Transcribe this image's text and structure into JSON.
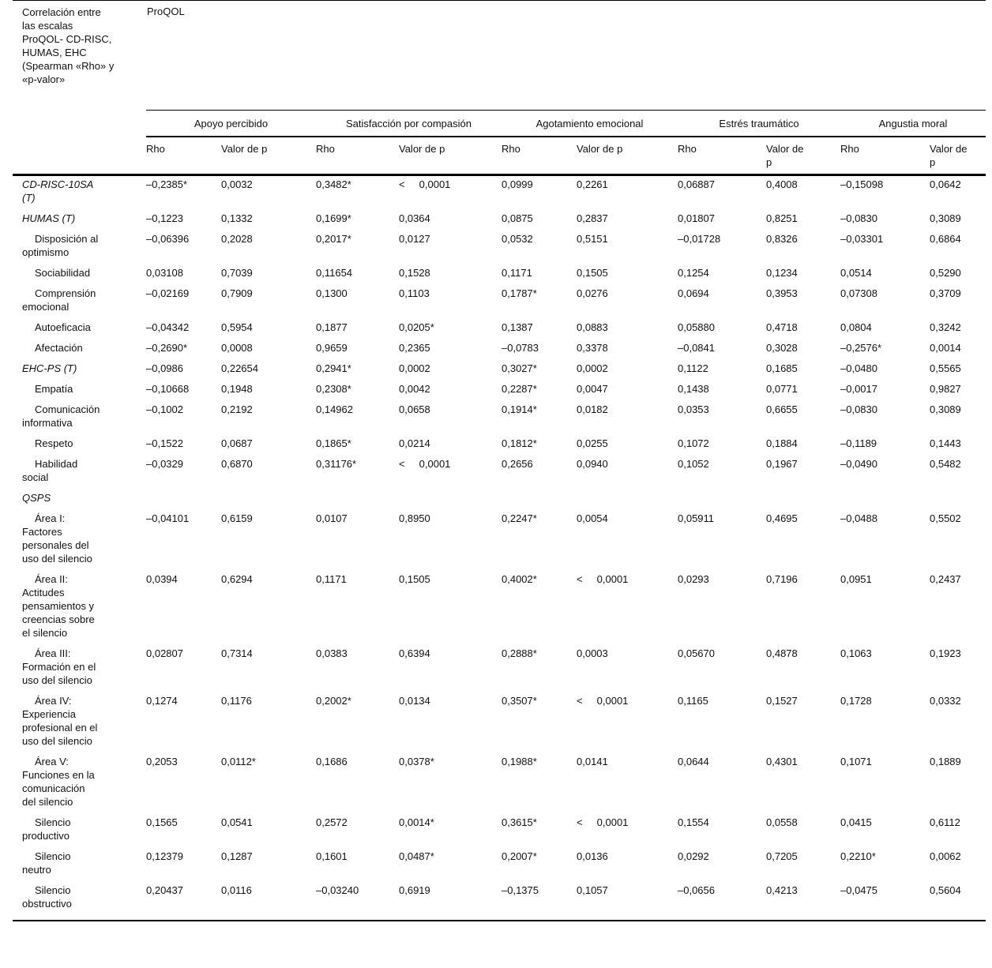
{
  "table": {
    "title": "Correlación entre\nlas escalas\nProQOL- CD-RISC,\nHUMAS, EHC\n(Spearman «Rho» y\n«p-valor»",
    "top_header": "ProQOL",
    "groups": [
      {
        "label": "Apoyo percibido"
      },
      {
        "label": "Satisfacción por compasión"
      },
      {
        "label": "Agotamiento emocional"
      },
      {
        "label": "Estrés traumático"
      },
      {
        "label": "Angustia moral"
      }
    ],
    "subheaders": [
      "Rho",
      "Valor de p",
      "Rho",
      "Valor de p",
      "Rho",
      "Valor de p",
      "Rho",
      "Valor de\np",
      "Rho",
      "Valor de\np"
    ],
    "rows": [
      {
        "label": "CD-RISC-10SA\n(T)",
        "style": "scale",
        "values": [
          "–0,2385*",
          "0,0032",
          "0,3482*",
          "<     0,0001",
          "0,0999",
          "0,2261",
          "0,06887",
          "0,4008",
          "–0,15098",
          "0,0642"
        ]
      },
      {
        "label": "HUMAS (T)",
        "style": "scale",
        "values": [
          "–0,1223",
          "0,1332",
          "0,1699*",
          "0,0364",
          "0,0875",
          "0,2837",
          "0,01807",
          "0,8251",
          "–0,0830",
          "0,3089"
        ]
      },
      {
        "label": "Disposición al\noptimismo",
        "style": "sub",
        "values": [
          "–0,06396",
          "0,2028",
          "0,2017*",
          "0,0127",
          "0,0532",
          "0,5151",
          "–0,01728",
          "0,8326",
          "–0,03301",
          "0,6864"
        ]
      },
      {
        "label": "Sociabilidad",
        "style": "sub",
        "values": [
          "0,03108",
          "0,7039",
          "0,11654",
          "0,1528",
          "0,1171",
          "0,1505",
          "0,1254",
          "0,1234",
          "0,0514",
          "0,5290"
        ]
      },
      {
        "label": "Comprensión\nemocional",
        "style": "sub",
        "values": [
          "–0,02169",
          "0,7909",
          "0,1300",
          "0,1103",
          "0,1787*",
          "0,0276",
          "0,0694",
          "0,3953",
          "0,07308",
          "0,3709"
        ]
      },
      {
        "label": "Autoeficacia",
        "style": "sub",
        "values": [
          "–0,04342",
          "0,5954",
          "0,1877",
          "0,0205*",
          "0,1387",
          "0,0883",
          "0,05880",
          "0,4718",
          "0,0804",
          "0,3242"
        ]
      },
      {
        "label": "Afectación",
        "style": "sub",
        "values": [
          "–0,2690*",
          "0,0008",
          "0,9659",
          "0,2365",
          "–0,0783",
          "0,3378",
          "–0,0841",
          "0,3028",
          "–0,2576*",
          "0,0014"
        ]
      },
      {
        "label": "EHC-PS (T)",
        "style": "scale",
        "values": [
          "–0,0986",
          "0,22654",
          "0,2941*",
          "0,0002",
          "0,3027*",
          "0,0002",
          "0,1122",
          "0,1685",
          "–0,0480",
          "0,5565"
        ]
      },
      {
        "label": "Empatía",
        "style": "sub",
        "values": [
          "–0,10668",
          "0,1948",
          "0,2308*",
          "0,0042",
          "0,2287*",
          "0,0047",
          "0,1438",
          "0,0771",
          "–0,0017",
          "0,9827"
        ]
      },
      {
        "label": "Comunicación\ninformativa",
        "style": "sub",
        "values": [
          "–0,1002",
          "0,2192",
          "0,14962",
          "0,0658",
          "0,1914*",
          "0,0182",
          "0,0353",
          "0,6655",
          "–0,0830",
          "0,3089"
        ]
      },
      {
        "label": "Respeto",
        "style": "sub",
        "values": [
          "–0,1522",
          "0,0687",
          "0,1865*",
          "0,0214",
          "0,1812*",
          "0,0255",
          "0,1072",
          "0,1884",
          "–0,1189",
          "0,1443"
        ]
      },
      {
        "label": "Habilidad\nsocial",
        "style": "sub",
        "values": [
          "–0,0329",
          "0,6870",
          "0,31176*",
          "<     0,0001",
          "0,2656",
          "0,0940",
          "0,1052",
          "0,1967",
          "–0,0490",
          "0,5482"
        ]
      },
      {
        "label": "QSPS",
        "style": "scale",
        "values": [
          "",
          "",
          "",
          "",
          "",
          "",
          "",
          "",
          "",
          ""
        ]
      },
      {
        "label": "Área I:\nFactores\npersonales del\nuso del silencio",
        "style": "sub",
        "values": [
          "–0,04101",
          "0,6159",
          "0,0107",
          "0,8950",
          "0,2247*",
          "0,0054",
          "0,05911",
          "0,4695",
          "–0,0488",
          "0,5502"
        ]
      },
      {
        "label": "Área II:\nActitudes\npensamientos y\ncreencias sobre\nel silencio",
        "style": "sub",
        "values": [
          "0,0394",
          "0,6294",
          "0,1171",
          "0,1505",
          "0,4002*",
          "<     0,0001",
          "0,0293",
          "0,7196",
          "0,0951",
          "0,2437"
        ]
      },
      {
        "label": "Área III:\nFormación en el\nuso del silencio",
        "style": "sub",
        "values": [
          "0,02807",
          "0,7314",
          "0,0383",
          "0,6394",
          "0,2888*",
          "0,0003",
          "0,05670",
          "0,4878",
          "0,1063",
          "0,1923"
        ]
      },
      {
        "label": "Área IV:\nExperiencia\nprofesional en el\nuso del silencio",
        "style": "sub",
        "values": [
          "0,1274",
          "0,1176",
          "0,2002*",
          "0,0134",
          "0,3507*",
          "<     0,0001",
          "0,1165",
          "0,1527",
          "0,1728",
          "0,0332"
        ]
      },
      {
        "label": "Área V:\nFunciones en la\ncomunicación\ndel silencio",
        "style": "sub",
        "values": [
          "0,2053",
          "0,0112*",
          "0,1686",
          "0,0378*",
          "0,1988*",
          "0,0141",
          "0,0644",
          "0,4301",
          "0,1071",
          "0,1889"
        ]
      },
      {
        "label": "Silencio\nproductivo",
        "style": "sub",
        "values": [
          "0,1565",
          "0,0541",
          "0,2572",
          "0,0014*",
          "0,3615*",
          "<     0,0001",
          "0,1554",
          "0,0558",
          "0,0415",
          "0,6112"
        ]
      },
      {
        "label": "Silencio\nneutro",
        "style": "sub",
        "values": [
          "0,12379",
          "0,1287",
          "0,1601",
          "0,0487*",
          "0,2007*",
          "0,0136",
          "0,0292",
          "0,7205",
          "0,2210*",
          "0,0062"
        ]
      },
      {
        "label": "Silencio\nobstructivo",
        "style": "sub",
        "values": [
          "0,20437",
          "0,0116",
          "–0,03240",
          "0,6919",
          "–0,1375",
          "0,1057",
          "–0,0656",
          "0,4213",
          "–0,0475",
          "0,5604"
        ]
      }
    ]
  }
}
